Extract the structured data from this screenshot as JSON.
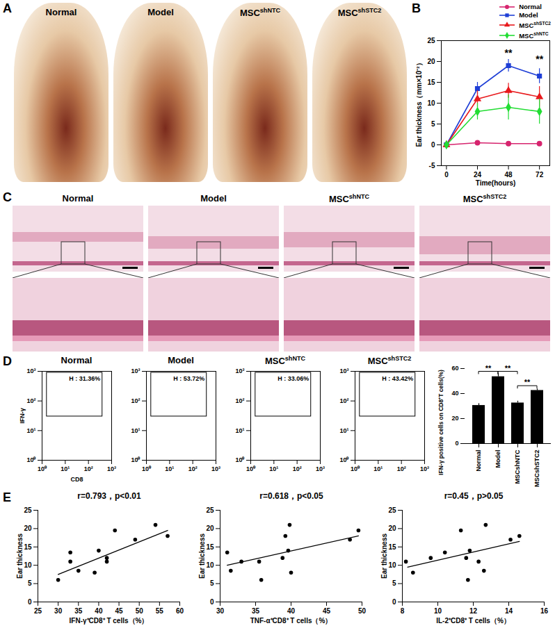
{
  "panel_A": {
    "panel_label": "A",
    "captions": [
      "Normal",
      "Model",
      "MSCshNTC",
      "MSCshSTC2"
    ]
  },
  "panel_C": {
    "panel_label": "C",
    "captions": [
      "Normal",
      "Model",
      "MSCshNTC",
      "MSCshSTC2"
    ]
  },
  "chart_data": [
    {
      "panel_label": "B",
      "type": "line",
      "x_label": "Time(hours)",
      "y_label": "Ear thickness（mm×10⁻²）",
      "x": [
        0,
        24,
        48,
        72
      ],
      "xlim": [
        -4,
        80
      ],
      "xticks": [
        0,
        24,
        48,
        72
      ],
      "ylim": [
        -5,
        25
      ],
      "yticks": [
        -5,
        0,
        5,
        10,
        15,
        20,
        25
      ],
      "legend": "top-right",
      "series": [
        {
          "name": "Normal",
          "color": "#d6246e",
          "marker": "circle",
          "values": [
            0,
            0.5,
            0.3,
            0.3
          ],
          "error": [
            0.3,
            0.3,
            0.3,
            0.3
          ]
        },
        {
          "name": "Model",
          "color": "#1f3fd6",
          "marker": "square",
          "values": [
            0,
            13.5,
            19,
            16.5
          ],
          "error": [
            0,
            1.5,
            1.5,
            1.8
          ]
        },
        {
          "name": "MSCshSTC2",
          "color": "#e8191c",
          "marker": "triangle",
          "values": [
            0,
            11,
            13,
            11.5
          ],
          "error": [
            0,
            2,
            1.8,
            2.5
          ]
        },
        {
          "name": "MSCshNTC",
          "color": "#22dd33",
          "marker": "diamond",
          "values": [
            0,
            8,
            9,
            8
          ],
          "error": [
            0,
            2,
            3,
            3
          ]
        }
      ],
      "annotations": [
        {
          "x": 48,
          "y": 22,
          "text": "**"
        },
        {
          "x": 72,
          "y": 20.5,
          "text": "**"
        }
      ]
    },
    {
      "panel_label": "D",
      "type": "flow",
      "title": "Normal",
      "x_label": "CD8",
      "y_label": "IFN-γ",
      "log": true,
      "xlim": [
        1,
        1000
      ],
      "ylim": [
        1,
        1000
      ],
      "xticks": [
        {
          "value": 1,
          "label": "10⁰"
        },
        {
          "value": 10,
          "label": "10¹"
        },
        {
          "value": 100,
          "label": "10²"
        },
        {
          "value": 1000,
          "label": "10³"
        }
      ],
      "yticks": [
        {
          "value": 1,
          "label": "10⁰"
        },
        {
          "value": 10,
          "label": "10¹"
        },
        {
          "value": 100,
          "label": "10²"
        },
        {
          "value": 1000,
          "label": "10³"
        }
      ],
      "gate": {
        "x": [
          1.6,
          400
        ],
        "y": [
          30,
          900
        ]
      },
      "gate_label": "H : 31.36%"
    },
    {
      "type": "flow",
      "title": "Model",
      "log": true,
      "xlim": [
        1,
        1000
      ],
      "ylim": [
        1,
        1000
      ],
      "xticks": [
        {
          "value": 1,
          "label": "10⁰"
        },
        {
          "value": 10,
          "label": "10¹"
        },
        {
          "value": 100,
          "label": "10²"
        },
        {
          "value": 1000,
          "label": "10³"
        }
      ],
      "yticks": [
        {
          "value": 1,
          "label": "10⁰"
        },
        {
          "value": 10,
          "label": "10¹"
        },
        {
          "value": 100,
          "label": "10²"
        },
        {
          "value": 1000,
          "label": "10³"
        }
      ],
      "gate": {
        "x": [
          1.6,
          400
        ],
        "y": [
          30,
          900
        ]
      },
      "gate_label": "H : 53.72%"
    },
    {
      "type": "flow",
      "title": "MSCshNTC",
      "log": true,
      "xlim": [
        1,
        1000
      ],
      "ylim": [
        1,
        1000
      ],
      "xticks": [
        {
          "value": 1,
          "label": "10⁰"
        },
        {
          "value": 10,
          "label": "10¹"
        },
        {
          "value": 100,
          "label": "10²"
        },
        {
          "value": 1000,
          "label": "10³"
        }
      ],
      "yticks": [
        {
          "value": 1,
          "label": "10⁰"
        },
        {
          "value": 10,
          "label": "10¹"
        },
        {
          "value": 100,
          "label": "10²"
        },
        {
          "value": 1000,
          "label": "10³"
        }
      ],
      "gate": {
        "x": [
          1.6,
          400
        ],
        "y": [
          30,
          900
        ]
      },
      "gate_label": "H : 33.06%"
    },
    {
      "type": "flow",
      "title": "MSCshSTC2",
      "log": true,
      "xlim": [
        1,
        1000
      ],
      "ylim": [
        1,
        1000
      ],
      "xticks": [
        {
          "value": 1,
          "label": "10⁰"
        },
        {
          "value": 10,
          "label": "10¹"
        },
        {
          "value": 100,
          "label": "10²"
        },
        {
          "value": 1000,
          "label": "10³"
        }
      ],
      "yticks": [
        {
          "value": 1,
          "label": "10⁰"
        },
        {
          "value": 10,
          "label": "10¹"
        },
        {
          "value": 100,
          "label": "10²"
        },
        {
          "value": 1000,
          "label": "10³"
        }
      ],
      "gate": {
        "x": [
          1.6,
          400
        ],
        "y": [
          30,
          900
        ]
      },
      "gate_label": "H : 43.42%"
    },
    {
      "type": "bar",
      "categories": [
        "Normal",
        "Model",
        "MSCshNTC",
        "MSCshSTC2"
      ],
      "values": [
        30.5,
        53.5,
        32.5,
        42.5
      ],
      "error": [
        1.5,
        2.5,
        1.5,
        1.2
      ],
      "color": "#000000",
      "y_label": "IFN-γ positive cells on CD8⁺T cells(%)",
      "ylim": [
        0,
        60
      ],
      "yticks": [
        0,
        20,
        40,
        60
      ],
      "significance": [
        {
          "from": "Normal",
          "to": "Model",
          "y": 57.5,
          "text": "**"
        },
        {
          "from": "Model",
          "to": "MSCshNTC",
          "y": 57.5,
          "text": "**"
        },
        {
          "from": "MSCshNTC",
          "to": "MSCshSTC2",
          "y": 46,
          "text": "**"
        }
      ]
    },
    {
      "panel_label": "E",
      "type": "scatter",
      "title": "r=0.793，p<0.01",
      "x_label": "IFN-γ⁺CD8⁺ T cells（%）",
      "y_label": "Ear thickness",
      "color": "#000000",
      "xlim": [
        25,
        60
      ],
      "xticks": [
        25,
        30,
        35,
        40,
        45,
        50,
        55,
        60
      ],
      "ylim": [
        0,
        25
      ],
      "yticks": [
        0,
        5,
        10,
        15,
        20,
        25
      ],
      "x": [
        30,
        33,
        33,
        35,
        39,
        40,
        42,
        42,
        44,
        49,
        54,
        57
      ],
      "values": [
        6,
        13.5,
        11,
        8.5,
        8,
        14,
        12,
        11,
        19.5,
        17,
        21,
        18
      ],
      "fit": {
        "x": [
          30,
          57
        ],
        "y": [
          7.5,
          19.5
        ]
      }
    },
    {
      "type": "scatter",
      "title": "r=0.618，p<0.05",
      "x_label": "TNF-α⁺CD8⁺ T cells（%）",
      "y_label": "Ear thickness",
      "color": "#000000",
      "xlim": [
        30,
        50
      ],
      "xticks": [
        30,
        35,
        40,
        45,
        50
      ],
      "ylim": [
        0,
        25
      ],
      "yticks": [
        0,
        5,
        10,
        15,
        20,
        25
      ],
      "x": [
        31,
        31.5,
        33,
        35.5,
        35.8,
        38.8,
        39.2,
        39.6,
        39.8,
        40,
        48.3,
        49.5
      ],
      "values": [
        13.5,
        8.5,
        11,
        11,
        6,
        12,
        18,
        14,
        21,
        8,
        17,
        19.5
      ],
      "fit": {
        "x": [
          31,
          49.5
        ],
        "y": [
          10,
          18
        ]
      }
    },
    {
      "type": "scatter",
      "title": "r=0.45，p>0.05",
      "x_label": "IL-2⁺CD8⁺ T cells（%）",
      "y_label": "Ear thickness",
      "color": "#000000",
      "xlim": [
        8,
        16
      ],
      "xticks": [
        8,
        10,
        12,
        14,
        16
      ],
      "ylim": [
        0,
        25
      ],
      "yticks": [
        0,
        5,
        10,
        15,
        20,
        25
      ],
      "x": [
        8.2,
        8.6,
        9.6,
        10.4,
        11.3,
        11.6,
        11.7,
        11.8,
        12.3,
        12.6,
        12.7,
        14.1,
        14.6
      ],
      "values": [
        11,
        8,
        12,
        13.5,
        19.5,
        12,
        6,
        14,
        11,
        8.5,
        21,
        17,
        18
      ],
      "fit": {
        "x": [
          8.3,
          14.6
        ],
        "y": [
          9.5,
          16.5
        ]
      }
    }
  ]
}
